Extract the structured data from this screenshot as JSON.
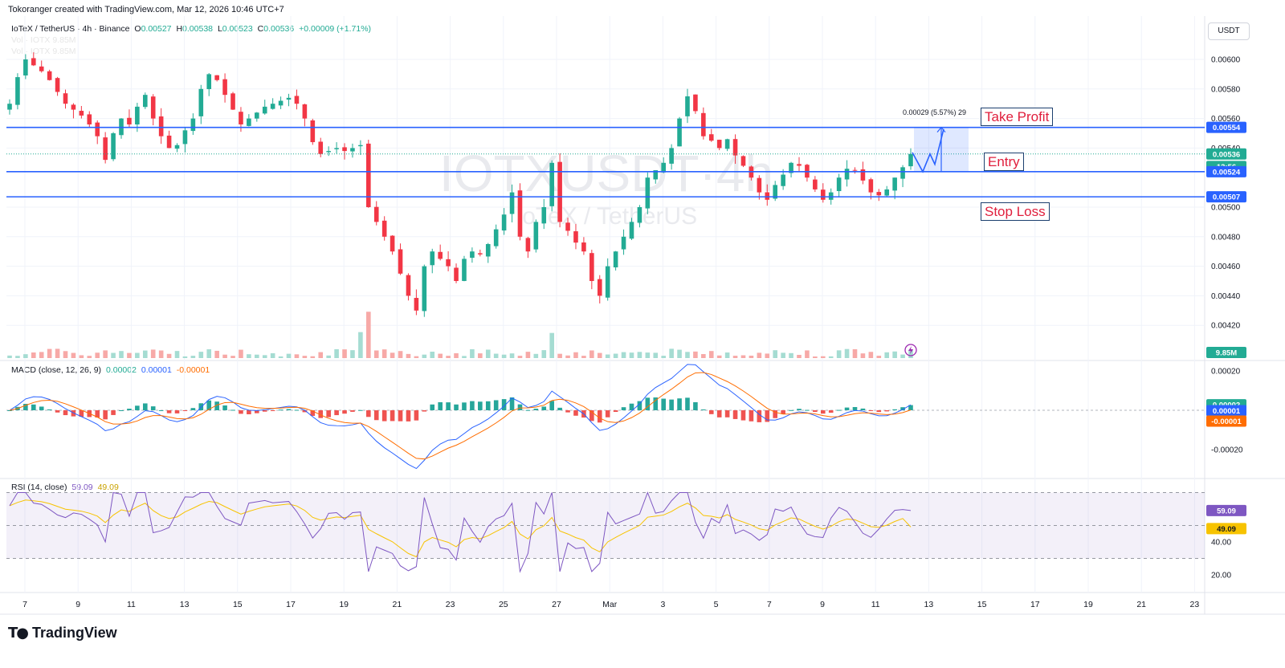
{
  "header": {
    "credit": "Tokoranger created with TradingView.com, Mar 12, 2026 10:46 UTC+7",
    "symbol_line": "IoTeX / TetherUS · 4h · Binance",
    "o_label": "O",
    "o": "0.00527",
    "h_label": "H",
    "h": "0.00538",
    "l_label": "L",
    "l": "0.00523",
    "c_label": "C",
    "c": "0.00536",
    "change": "+0.00009 (+1.71%)",
    "vol1": "Vol · IOTX  9.85M",
    "vol2": "Vol · IOTX  9.85M",
    "currency_button": "USDT"
  },
  "watermark": {
    "symbol": "IOTXUSDT·4h",
    "name": "IoTeX / TetherUS"
  },
  "price_axis": {
    "ticks": [
      "0.00600",
      "0.00580",
      "0.00560",
      "0.00540",
      "0.00500",
      "0.00480",
      "0.00460",
      "0.00440",
      "0.00420"
    ],
    "tick_values": [
      0.006,
      0.0058,
      0.0056,
      0.0054,
      0.005,
      0.0048,
      0.0046,
      0.0044,
      0.0042
    ],
    "badges": [
      {
        "text": "0.00554",
        "value": 0.00554,
        "color": "#2962ff"
      },
      {
        "text": "0.00536",
        "value": 0.00536,
        "color": "#22ab94"
      },
      {
        "text": "13:56",
        "value": 0.005275,
        "color": "#22ab94"
      },
      {
        "text": "0.00524",
        "value": 0.00524,
        "color": "#2962ff"
      },
      {
        "text": "0.00507",
        "value": 0.00507,
        "color": "#2962ff"
      }
    ],
    "volume_badge": "9.85M"
  },
  "macd": {
    "label": "MACD (close, 12, 26, 9)",
    "hist": "0.00002",
    "macd": "0.00001",
    "signal": "-0.00001",
    "axis_ticks": [
      "0.00020",
      "-0.00020"
    ],
    "axis_tick_values": [
      0.0002,
      -0.0002
    ],
    "badges": [
      {
        "text": "0.00002",
        "value": 2e-05,
        "color": "#22ab94"
      },
      {
        "text": "0.00001",
        "value": 1e-05,
        "color": "#2962ff"
      },
      {
        "text": "-0.00001",
        "value": -1e-05,
        "color": "#ff6d00"
      }
    ]
  },
  "rsi": {
    "label": "RSI (14, close)",
    "rsi": "59.09",
    "ma": "49.09",
    "axis_ticks": [
      "40.00",
      "20.00"
    ],
    "axis_tick_values": [
      40,
      20
    ],
    "badges": [
      {
        "text": "59.09",
        "value": 59.09,
        "color": "#7e57c2"
      },
      {
        "text": "49.09",
        "value": 49.09,
        "color": "#f7c300"
      }
    ]
  },
  "time_axis": {
    "labels": [
      "7",
      "9",
      "11",
      "13",
      "15",
      "17",
      "19",
      "21",
      "23",
      "25",
      "27",
      "Mar",
      "3",
      "5",
      "7",
      "9",
      "11",
      "13",
      "15",
      "17",
      "19",
      "21",
      "23"
    ]
  },
  "annotations": {
    "take_profit": "Take Profit",
    "entry": "Entry",
    "stop_loss": "Stop Loss",
    "measure": "0.00029 (5.57%) 29"
  },
  "brand": {
    "name": "TradingView"
  },
  "colors": {
    "up": "#22ab94",
    "down": "#f23645",
    "level_line": "#2962ff",
    "macd_line": "#2962ff",
    "signal_line": "#ff6d00",
    "rsi_line": "#7e57c2",
    "rsi_ma": "#f7c300",
    "annotation_text": "#e01e3c"
  },
  "chart_data": {
    "type": "candlestick",
    "symbol": "IOTXUSDT",
    "timeframe": "4h",
    "price_levels": [
      {
        "name": "Take Profit",
        "value": 0.00554
      },
      {
        "name": "Entry",
        "value": 0.00524
      },
      {
        "name": "Stop Loss",
        "value": 0.00507
      }
    ],
    "price_close_path": [
      0.0057,
      0.00588,
      0.006,
      0.00596,
      0.00592,
      0.00586,
      0.00578,
      0.0057,
      0.00566,
      0.00562,
      0.00556,
      0.00548,
      0.00532,
      0.0055,
      0.0056,
      0.00556,
      0.00568,
      0.00576,
      0.0056,
      0.00548,
      0.0054,
      0.00542,
      0.00552,
      0.0056,
      0.0058,
      0.0059,
      0.00586,
      0.00576,
      0.00566,
      0.00556,
      0.0056,
      0.00564,
      0.00568,
      0.0057,
      0.00572,
      0.00574,
      0.0057,
      0.0056,
      0.00544,
      0.00536,
      0.00538,
      0.0054,
      0.00538,
      0.0054,
      0.00542,
      0.005,
      0.0049,
      0.0048,
      0.0047,
      0.00455,
      0.0044,
      0.0043,
      0.0046,
      0.0047,
      0.00465,
      0.0046,
      0.0045,
      0.00465,
      0.0047,
      0.00468,
      0.00475,
      0.00485,
      0.00495,
      0.0051,
      0.0048,
      0.0047,
      0.0049,
      0.005,
      0.0053,
      0.0049,
      0.00484,
      0.00476,
      0.0047,
      0.0045,
      0.0044,
      0.0046,
      0.0047,
      0.0048,
      0.0049,
      0.005,
      0.0052,
      0.00525,
      0.0053,
      0.0054,
      0.0056,
      0.00575,
      0.00565,
      0.00548,
      0.00545,
      0.0054,
      0.00546,
      0.00535,
      0.00528,
      0.0052,
      0.0051,
      0.00505,
      0.00515,
      0.00522,
      0.0053,
      0.00528,
      0.0052,
      0.00512,
      0.00505,
      0.0051,
      0.0052,
      0.00526,
      0.00525,
      0.00518,
      0.0051,
      0.00508,
      0.00512,
      0.0052,
      0.00527,
      0.00536
    ],
    "volume_peak": "9.85M",
    "macd": {
      "hist": 2e-05,
      "macd": 1e-05,
      "signal": -1e-05
    },
    "rsi": {
      "value": 59.09,
      "ma": 49.09
    },
    "x_range": [
      "Feb 6",
      "Mar 23"
    ],
    "grid": true
  }
}
